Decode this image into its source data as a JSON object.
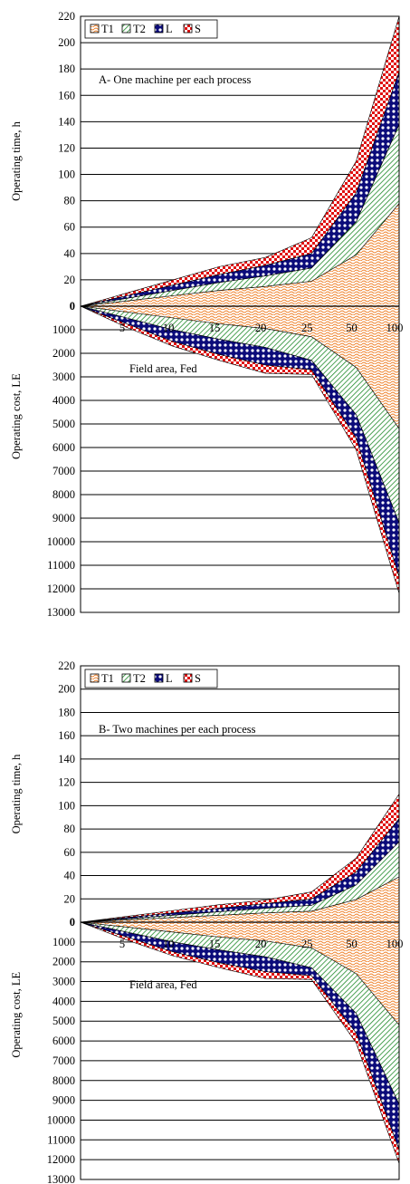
{
  "chart_data": [
    {
      "id": "A",
      "type": "area",
      "stacked": true,
      "annotation": "A- One machine per each process",
      "upper_ylabel": "Operating time, h",
      "lower_ylabel": "Operating cost, LE",
      "xlabel": "Field area, Fed",
      "categories": [
        "0",
        "5",
        "10",
        "15",
        "20",
        "25",
        "50",
        "100"
      ],
      "upper_ylim": [
        0,
        220
      ],
      "upper_yticks": [
        0,
        20,
        40,
        60,
        80,
        100,
        120,
        140,
        160,
        180,
        200,
        220
      ],
      "lower_ylim": [
        0,
        13000
      ],
      "lower_yticks": [
        0,
        1000,
        2000,
        3000,
        4000,
        5000,
        6000,
        7000,
        8000,
        9000,
        10000,
        11000,
        12000,
        13000
      ],
      "legend": [
        "T1",
        "T2",
        "L",
        "S"
      ],
      "legend_position": "top-left",
      "grid": true,
      "time_series": [
        {
          "name": "T1",
          "values": [
            0,
            4,
            8,
            12,
            15,
            19,
            39,
            78
          ]
        },
        {
          "name": "T2",
          "values": [
            0,
            2,
            4,
            6,
            8,
            10,
            25,
            60
          ]
        },
        {
          "name": "L",
          "values": [
            0,
            2,
            4,
            6,
            8,
            11,
            22,
            40
          ]
        },
        {
          "name": "S",
          "values": [
            0,
            2,
            4,
            6,
            6,
            12,
            24,
            42
          ]
        }
      ],
      "cost_series": [
        {
          "name": "T1",
          "values": [
            0,
            250,
            500,
            750,
            950,
            1300,
            2600,
            5200
          ]
        },
        {
          "name": "T2",
          "values": [
            0,
            250,
            500,
            650,
            800,
            1000,
            2000,
            4000
          ]
        },
        {
          "name": "L",
          "values": [
            0,
            250,
            500,
            650,
            750,
            400,
            1000,
            2300
          ]
        },
        {
          "name": "S",
          "values": [
            0,
            150,
            200,
            250,
            350,
            200,
            500,
            700
          ]
        }
      ]
    },
    {
      "id": "B",
      "type": "area",
      "stacked": true,
      "annotation": "B- Two machines per each process",
      "upper_ylabel": "Operating time, h",
      "lower_ylabel": "Operating cost, LE",
      "xlabel": "Field area, Fed",
      "categories": [
        "0",
        "5",
        "10",
        "15",
        "20",
        "25",
        "50",
        "100"
      ],
      "upper_ylim": [
        0,
        220
      ],
      "upper_yticks": [
        0,
        20,
        40,
        60,
        80,
        100,
        120,
        140,
        160,
        180,
        200,
        220
      ],
      "lower_ylim": [
        0,
        13000
      ],
      "lower_yticks": [
        0,
        1000,
        2000,
        3000,
        4000,
        5000,
        6000,
        7000,
        8000,
        9000,
        10000,
        11000,
        12000,
        13000
      ],
      "legend": [
        "T1",
        "T2",
        "L",
        "S"
      ],
      "legend_position": "top-left",
      "grid": true,
      "time_series": [
        {
          "name": "T1",
          "values": [
            0,
            2,
            4,
            6,
            8,
            9.5,
            19.5,
            39
          ]
        },
        {
          "name": "T2",
          "values": [
            0,
            1,
            2,
            3,
            4,
            5,
            12.5,
            30
          ]
        },
        {
          "name": "L",
          "values": [
            0,
            1,
            2,
            3,
            4,
            5.5,
            11,
            20
          ]
        },
        {
          "name": "S",
          "values": [
            0,
            1,
            2,
            3,
            3,
            6,
            12,
            21
          ]
        }
      ],
      "cost_series": [
        {
          "name": "T1",
          "values": [
            0,
            250,
            500,
            750,
            950,
            1300,
            2600,
            5200
          ]
        },
        {
          "name": "T2",
          "values": [
            0,
            250,
            500,
            650,
            800,
            1000,
            2000,
            4000
          ]
        },
        {
          "name": "L",
          "values": [
            0,
            250,
            500,
            650,
            750,
            400,
            1000,
            2300
          ]
        },
        {
          "name": "S",
          "values": [
            0,
            150,
            200,
            250,
            350,
            200,
            500,
            700
          ]
        }
      ]
    }
  ]
}
